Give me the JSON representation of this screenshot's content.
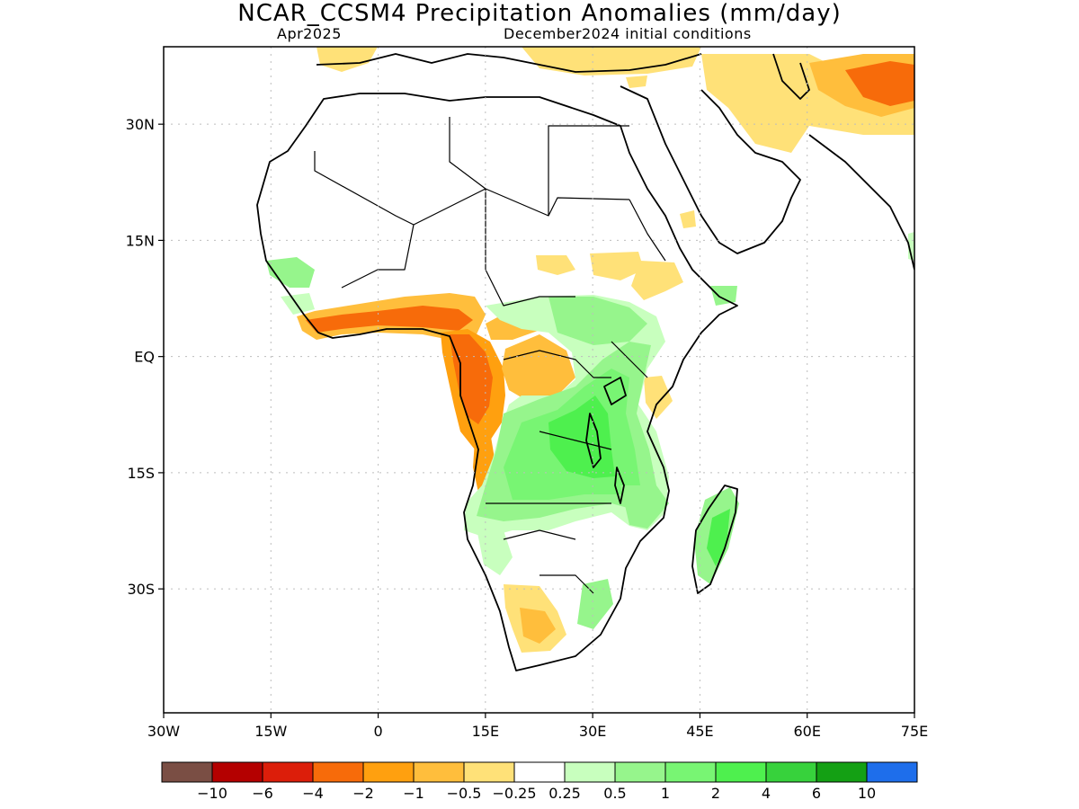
{
  "header": {
    "title": "NCAR_CCSM4 Precipitation Anomalies (mm/day)",
    "valid_month": "Apr2025",
    "initial_conditions": "December2024 initial conditions"
  },
  "map": {
    "region": "Africa",
    "lon_range": [
      -30,
      75
    ],
    "lat_range": [
      -46,
      40
    ],
    "grid": "dotted"
  },
  "axes": {
    "x_ticks": [
      {
        "value": -30,
        "label": "30W"
      },
      {
        "value": -15,
        "label": "15W"
      },
      {
        "value": 0,
        "label": "0"
      },
      {
        "value": 15,
        "label": "15E"
      },
      {
        "value": 30,
        "label": "30E"
      },
      {
        "value": 45,
        "label": "45E"
      },
      {
        "value": 60,
        "label": "60E"
      },
      {
        "value": 75,
        "label": "75E"
      }
    ],
    "y_ticks": [
      {
        "value": 30,
        "label": "30N"
      },
      {
        "value": 15,
        "label": "15N"
      },
      {
        "value": 0,
        "label": "EQ"
      },
      {
        "value": -15,
        "label": "15S"
      },
      {
        "value": -30,
        "label": "30S"
      }
    ]
  },
  "legend": {
    "colors": [
      "#7a4e44",
      "#b40000",
      "#dc1e0a",
      "#f76b0a",
      "#ffa00f",
      "#ffbe3c",
      "#ffe178",
      "#ffffff",
      "#c8ffbe",
      "#96f58c",
      "#78f573",
      "#4ef04e",
      "#37d23c",
      "#14a014",
      "#1e6eeb"
    ],
    "labels": [
      "−10",
      "−6",
      "−4",
      "−2",
      "−1",
      "−0.5",
      "−0.25",
      "0.25",
      "0.5",
      "1",
      "2",
      "4",
      "6",
      "10"
    ]
  }
}
